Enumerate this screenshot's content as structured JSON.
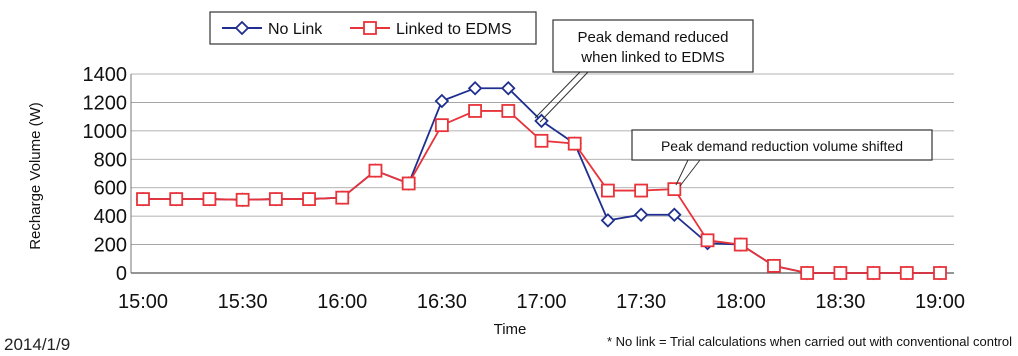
{
  "chart_data": {
    "type": "line",
    "x": [
      "15:00",
      "15:10",
      "15:20",
      "15:30",
      "15:40",
      "15:50",
      "16:00",
      "16:10",
      "16:20",
      "16:30",
      "16:40",
      "16:50",
      "17:00",
      "17:10",
      "17:20",
      "17:30",
      "17:40",
      "17:50",
      "18:00",
      "18:10",
      "18:20",
      "18:30",
      "18:40",
      "18:50",
      "19:00"
    ],
    "x_ticks": [
      "15:00",
      "15:30",
      "16:00",
      "16:30",
      "17:00",
      "17:30",
      "18:00",
      "18:30",
      "19:00"
    ],
    "xlabel": "Time",
    "ylabel": "Recharge Volume (W)",
    "ylim": [
      0,
      1400
    ],
    "y_ticks": [
      0,
      200,
      400,
      600,
      800,
      1000,
      1200,
      1400
    ],
    "grid": "horizontal",
    "legend_position": "top-left",
    "series": [
      {
        "name": "No Link",
        "color": "#1f2f8f",
        "marker": "diamond",
        "values": [
          520,
          520,
          520,
          515,
          520,
          520,
          530,
          720,
          630,
          1210,
          1300,
          1300,
          1070,
          910,
          370,
          410,
          410,
          210,
          200,
          50,
          0,
          0,
          0,
          0,
          0
        ]
      },
      {
        "name": "Linked to EDMS",
        "color": "#e8333a",
        "marker": "square",
        "values": [
          520,
          520,
          520,
          515,
          520,
          520,
          530,
          720,
          630,
          1040,
          1140,
          1140,
          930,
          910,
          580,
          580,
          590,
          230,
          200,
          50,
          0,
          0,
          0,
          0,
          0
        ]
      }
    ],
    "annotations": [
      {
        "text_lines": [
          "Peak demand reduced",
          "when linked to EDMS"
        ]
      },
      {
        "text_lines": [
          "Peak demand reduction volume shifted"
        ]
      }
    ]
  },
  "footer": {
    "date": "2014/1/9",
    "note": "* No link = Trial calculations when carried out with conventional control"
  }
}
